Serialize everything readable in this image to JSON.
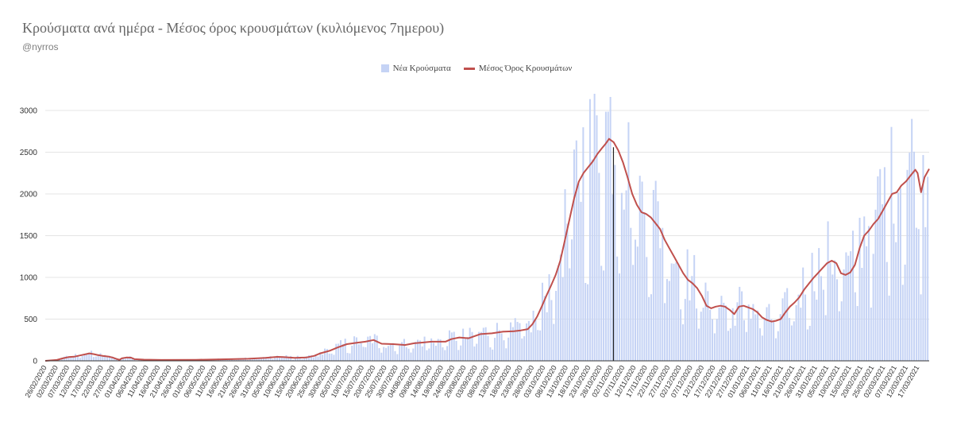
{
  "chart_data": {
    "type": "bar+line",
    "title": "Κρούσματα ανά ημέρα - Μέσος όρος κρουσμάτων (κυλιόμενος 7ημερου)",
    "subtitle": "@nyrros",
    "legend": {
      "position": "top-center",
      "items": [
        {
          "label": "Νέα Κρούσματα"
        },
        {
          "label": "Μέσος Όρος Κρουσμάτων"
        }
      ]
    },
    "start_date": "2020-02-26",
    "num_days": 390,
    "ylim": [
      0,
      3200
    ],
    "yticks": [
      0,
      500,
      1000,
      1500,
      2000,
      2500,
      3000
    ],
    "grid": true,
    "marker_date": "02/11/2020",
    "x_tick_labels": [
      "26/02/2020",
      "02/03/2020",
      "07/03/2020",
      "12/03/2020",
      "17/03/2020",
      "22/03/2020",
      "27/03/2020",
      "01/04/2020",
      "06/04/2020",
      "11/04/2020",
      "16/04/2020",
      "21/04/2020",
      "26/04/2020",
      "01/05/2020",
      "06/05/2020",
      "11/05/2020",
      "16/05/2020",
      "21/05/2020",
      "26/05/2020",
      "31/05/2020",
      "05/06/2020",
      "10/06/2020",
      "15/06/2020",
      "20/06/2020",
      "25/06/2020",
      "30/06/2020",
      "05/07/2020",
      "10/07/2020",
      "15/07/2020",
      "20/07/2020",
      "25/07/2020",
      "30/07/2020",
      "04/08/2020",
      "09/08/2020",
      "14/08/2020",
      "19/08/2020",
      "24/08/2020",
      "29/08/2020",
      "03/09/2020",
      "08/09/2020",
      "13/09/2020",
      "18/09/2020",
      "23/09/2020",
      "28/09/2020",
      "03/10/2020",
      "08/10/2020",
      "13/10/2020",
      "18/10/2020",
      "23/10/2020",
      "28/10/2020",
      "02/11/2020",
      "07/11/2020",
      "12/11/2020",
      "17/11/2020",
      "22/11/2020",
      "27/11/2020",
      "02/12/2020",
      "07/12/2020",
      "12/12/2020",
      "17/12/2020",
      "22/12/2020",
      "27/12/2020",
      "01/01/2021",
      "06/01/2021",
      "11/01/2021",
      "16/01/2021",
      "21/01/2021",
      "26/01/2021",
      "31/01/2021",
      "05/02/2021",
      "10/02/2021",
      "15/02/2021",
      "20/02/2021",
      "25/02/2021",
      "02/03/2021",
      "07/03/2021",
      "12/03/2021",
      "17/03/2021"
    ],
    "series": [
      {
        "name": "Νέα Κρούσματα",
        "type": "bar",
        "color": "#c5d3f5",
        "note": "daily values reconstructed from the 7-day average shape",
        "values": []
      },
      {
        "name": "Μέσος Όρος Κρουσμάτων",
        "type": "line",
        "color": "#c0504d",
        "points": [
          [
            0,
            0
          ],
          [
            10,
            10
          ],
          [
            15,
            30
          ],
          [
            20,
            45
          ],
          [
            25,
            50
          ],
          [
            30,
            65
          ],
          [
            35,
            80
          ],
          [
            38,
            90
          ],
          [
            42,
            80
          ],
          [
            45,
            70
          ],
          [
            50,
            58
          ],
          [
            55,
            50
          ],
          [
            58,
            40
          ],
          [
            62,
            20
          ],
          [
            64,
            12
          ],
          [
            66,
            30
          ],
          [
            70,
            40
          ],
          [
            74,
            38
          ],
          [
            77,
            20
          ],
          [
            85,
            14
          ],
          [
            100,
            10
          ],
          [
            130,
            12
          ],
          [
            160,
            20
          ],
          [
            175,
            25
          ],
          [
            190,
            35
          ],
          [
            200,
            48
          ],
          [
            205,
            45
          ],
          [
            215,
            35
          ],
          [
            225,
            40
          ],
          [
            232,
            60
          ],
          [
            237,
            90
          ],
          [
            245,
            120
          ],
          [
            252,
            160
          ],
          [
            260,
            200
          ],
          [
            268,
            215
          ],
          [
            276,
            230
          ],
          [
            283,
            250
          ],
          [
            290,
            205
          ],
          [
            300,
            200
          ],
          [
            310,
            190
          ],
          [
            318,
            210
          ],
          [
            326,
            220
          ],
          [
            333,
            230
          ],
          [
            345,
            230
          ],
          [
            350,
            260
          ],
          [
            357,
            280
          ],
          [
            365,
            270
          ],
          [
            375,
            320
          ],
          [
            385,
            330
          ],
          [
            395,
            350
          ],
          [
            404,
            355
          ],
          [
            410,
            365
          ],
          [
            416,
            380
          ],
          [
            420,
            440
          ],
          [
            424,
            530
          ],
          [
            428,
            650
          ],
          [
            432,
            780
          ],
          [
            436,
            900
          ],
          [
            440,
            1030
          ],
          [
            444,
            1200
          ],
          [
            448,
            1450
          ],
          [
            452,
            1700
          ],
          [
            456,
            1950
          ],
          [
            460,
            2150
          ],
          [
            464,
            2250
          ],
          [
            468,
            2320
          ],
          [
            472,
            2390
          ],
          [
            476,
            2480
          ],
          [
            480,
            2550
          ],
          [
            483,
            2600
          ],
          [
            486,
            2660
          ],
          [
            490,
            2620
          ],
          [
            494,
            2520
          ],
          [
            498,
            2380
          ],
          [
            502,
            2200
          ],
          [
            506,
            2000
          ],
          [
            510,
            1870
          ],
          [
            514,
            1780
          ],
          [
            518,
            1760
          ],
          [
            522,
            1720
          ],
          [
            526,
            1650
          ],
          [
            530,
            1580
          ],
          [
            534,
            1450
          ],
          [
            538,
            1350
          ],
          [
            542,
            1250
          ],
          [
            546,
            1150
          ],
          [
            550,
            1050
          ],
          [
            554,
            970
          ],
          [
            558,
            930
          ],
          [
            562,
            870
          ],
          [
            566,
            780
          ],
          [
            570,
            660
          ],
          [
            574,
            630
          ],
          [
            578,
            650
          ],
          [
            582,
            660
          ],
          [
            586,
            650
          ],
          [
            590,
            610
          ],
          [
            594,
            560
          ],
          [
            598,
            650
          ],
          [
            602,
            660
          ],
          [
            606,
            640
          ],
          [
            610,
            620
          ],
          [
            614,
            580
          ],
          [
            618,
            520
          ],
          [
            622,
            490
          ],
          [
            626,
            470
          ],
          [
            630,
            480
          ],
          [
            634,
            500
          ],
          [
            638,
            580
          ],
          [
            642,
            650
          ],
          [
            646,
            700
          ],
          [
            650,
            760
          ],
          [
            654,
            850
          ],
          [
            658,
            920
          ],
          [
            662,
            990
          ],
          [
            666,
            1050
          ],
          [
            670,
            1110
          ],
          [
            674,
            1170
          ],
          [
            678,
            1200
          ],
          [
            682,
            1170
          ],
          [
            686,
            1050
          ],
          [
            690,
            1030
          ],
          [
            694,
            1060
          ],
          [
            698,
            1150
          ],
          [
            702,
            1350
          ],
          [
            706,
            1500
          ],
          [
            710,
            1560
          ],
          [
            714,
            1640
          ],
          [
            718,
            1700
          ],
          [
            722,
            1800
          ],
          [
            726,
            1900
          ],
          [
            730,
            2000
          ],
          [
            734,
            2020
          ],
          [
            738,
            2100
          ],
          [
            742,
            2150
          ],
          [
            746,
            2220
          ],
          [
            750,
            2290
          ],
          [
            752,
            2250
          ],
          [
            755,
            2020
          ],
          [
            758,
            2200
          ],
          [
            762,
            2300
          ]
        ]
      }
    ]
  }
}
